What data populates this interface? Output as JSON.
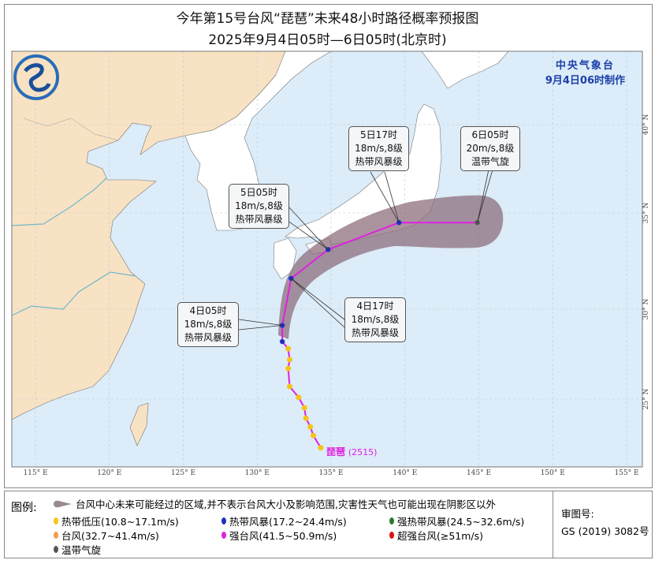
{
  "title": "今年第15号台风“琵琶”未来48小时路径概率预报图",
  "subtitle": "2025年9月4日05时—6日05时(北京时)",
  "issuer": {
    "name": "中央气象台",
    "made": "9月4日06时制作"
  },
  "axes": {
    "lon_labels": [
      "115° E",
      "120° E",
      "125° E",
      "130° E",
      "135° E",
      "140° E",
      "145° E",
      "150° E",
      "155° E"
    ],
    "lon_values": [
      115,
      120,
      125,
      130,
      135,
      140,
      145,
      150,
      155
    ],
    "lat_labels": [
      "40° N",
      "35° N",
      "30° N",
      "25° N"
    ],
    "lat_values": [
      40,
      35,
      30,
      25
    ]
  },
  "colors": {
    "ocean": "#dcecf8",
    "china": "#f8e2c4",
    "other_land": "#ffffff",
    "track": "#e020e0",
    "cone": "#8a6a78",
    "ts": "#2030c0",
    "td": "#f5c518",
    "ec": "#555555"
  },
  "typhoon": {
    "name": "琵琶",
    "code": "(2515)"
  },
  "past_track": [
    {
      "lon": 134.3,
      "lat": 22.2,
      "level": "td"
    },
    {
      "lon": 133.8,
      "lat": 22.9,
      "level": "td"
    },
    {
      "lon": 133.6,
      "lat": 23.4,
      "level": "td"
    },
    {
      "lon": 133.3,
      "lat": 23.9,
      "level": "td"
    },
    {
      "lon": 133.2,
      "lat": 24.5,
      "level": "td"
    },
    {
      "lon": 132.8,
      "lat": 25.1,
      "level": "td"
    },
    {
      "lon": 132.2,
      "lat": 25.7,
      "level": "td"
    },
    {
      "lon": 132.1,
      "lat": 26.7,
      "level": "td"
    },
    {
      "lon": 132.2,
      "lat": 27.2,
      "level": "td"
    },
    {
      "lon": 132.1,
      "lat": 27.8,
      "level": "td"
    },
    {
      "lon": 131.7,
      "lat": 28.2,
      "level": "ts"
    }
  ],
  "forecast": [
    {
      "time": "4日05时",
      "wind": "18m/s,8级",
      "category": "热带风暴级",
      "lon": 131.7,
      "lat": 29.1,
      "level": "ts"
    },
    {
      "time": "4日17时",
      "wind": "18m/s,8级",
      "category": "热带风暴级",
      "lon": 132.3,
      "lat": 31.6,
      "level": "ts"
    },
    {
      "time": "5日05时",
      "wind": "18m/s,8级",
      "category": "热带风暴级",
      "lon": 134.8,
      "lat": 33.1,
      "level": "ts"
    },
    {
      "time": "5日17时",
      "wind": "18m/s,8级",
      "category": "热带风暴级",
      "lon": 139.6,
      "lat": 34.5,
      "level": "ts"
    },
    {
      "time": "6日05时",
      "wind": "20m/s,8级",
      "category": "温带气旋",
      "lon": 144.9,
      "lat": 34.5,
      "level": "ec"
    }
  ],
  "legend": {
    "label": "图例:",
    "cone": "台风中心未来可能经过的区域,并不表示台风大小及影响范围,灾害性天气也可能出现在阴影区以外",
    "items": [
      {
        "text": "热带低压(10.8~17.1m/s)",
        "color": "#f5c518"
      },
      {
        "text": "热带风暴(17.2~24.4m/s)",
        "color": "#2030c0"
      },
      {
        "text": "强热带风暴(24.5~32.6m/s)",
        "color": "#2a7a2a"
      },
      {
        "text": "台风(32.7~41.4m/s)",
        "color": "#f59a4a"
      },
      {
        "text": "强台风(41.5~50.9m/s)",
        "color": "#e020e0"
      },
      {
        "text": "超强台风(≥51m/s)",
        "color": "#e01010"
      },
      {
        "text": "温带气旋",
        "color": "#555555"
      }
    ],
    "approval_label": "审图号:",
    "approval_no": "GS (2019) 3082号"
  }
}
